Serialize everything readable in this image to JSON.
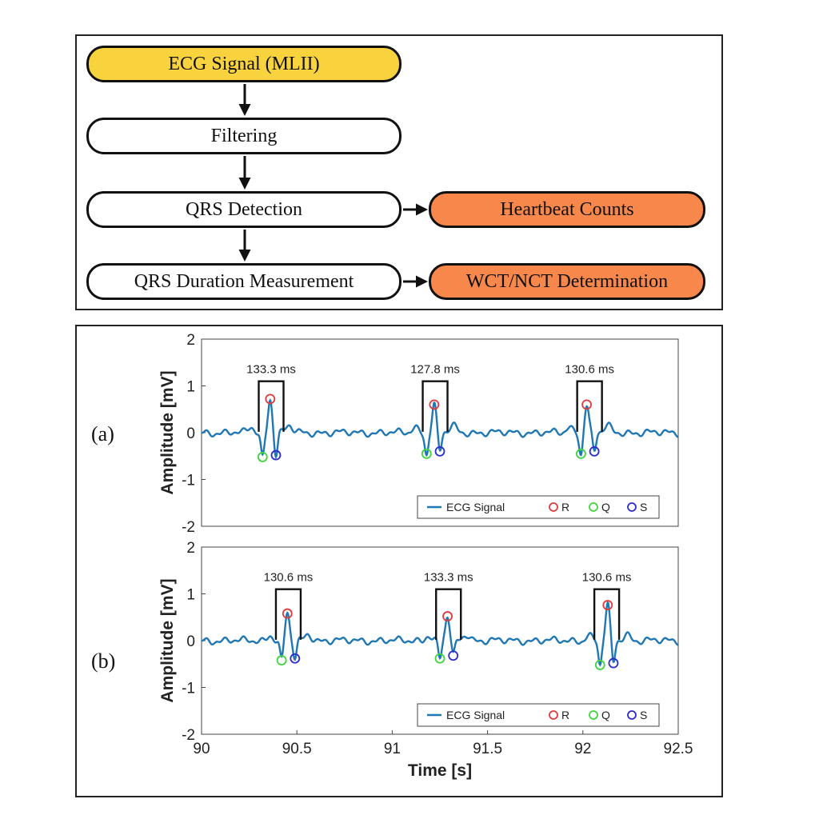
{
  "flowchart": {
    "nodes": {
      "ecg_signal": "ECG Signal (MLII)",
      "filtering": "Filtering",
      "qrs_detection": "QRS Detection",
      "heartbeat_counts": "Heartbeat Counts",
      "qrs_duration": "QRS Duration Measurement",
      "wct_nct": "WCT/NCT Determination"
    },
    "colors": {
      "input": "#f8d33e",
      "output": "#f7874b",
      "process": "#ffffff"
    }
  },
  "chart_data": [
    {
      "type": "line",
      "panel_label": "(a)",
      "ylabel": "Amplitude [mV]",
      "xlabel": "",
      "xlim": [
        90,
        92.5
      ],
      "ylim": [
        -2,
        2
      ],
      "yticks": [
        "2",
        "1",
        "0",
        "-1",
        "-2"
      ],
      "series": [
        {
          "name": "ECG Signal",
          "color": "#1f77b4",
          "beats": [
            {
              "q_time": 90.32,
              "q_val": -0.52,
              "r_time": 90.36,
              "r_val": 0.72,
              "s_time": 90.39,
              "s_val": -0.48
            },
            {
              "q_time": 91.18,
              "q_val": -0.45,
              "r_time": 91.22,
              "r_val": 0.6,
              "s_time": 91.25,
              "s_val": -0.4
            },
            {
              "q_time": 91.99,
              "q_val": -0.45,
              "r_time": 92.02,
              "r_val": 0.6,
              "s_time": 92.06,
              "s_val": -0.4
            }
          ]
        }
      ],
      "markers": {
        "R": {
          "color": "#e03a3a",
          "points": [
            [
              90.36,
              0.72
            ],
            [
              91.22,
              0.6
            ],
            [
              92.02,
              0.6
            ]
          ]
        },
        "Q": {
          "color": "#3fd43f",
          "points": [
            [
              90.32,
              -0.52
            ],
            [
              91.18,
              -0.45
            ],
            [
              91.99,
              -0.45
            ]
          ]
        },
        "S": {
          "color": "#2a2ad0",
          "points": [
            [
              90.39,
              -0.48
            ],
            [
              91.25,
              -0.4
            ],
            [
              92.06,
              -0.4
            ]
          ]
        }
      },
      "durations": [
        {
          "label": "133.3 ms",
          "start": 90.3,
          "end": 90.43
        },
        {
          "label": "127.8 ms",
          "start": 91.16,
          "end": 91.29
        },
        {
          "label": "130.6 ms",
          "start": 91.97,
          "end": 92.1
        }
      ],
      "legend": {
        "position": "bottom-right",
        "entries": [
          "ECG Signal",
          "R",
          "Q",
          "S"
        ]
      }
    },
    {
      "type": "line",
      "panel_label": "(b)",
      "ylabel": "Amplitude [mV]",
      "xlabel": "Time [s]",
      "xlim": [
        90,
        92.5
      ],
      "ylim": [
        -2,
        2
      ],
      "xticks": [
        "90",
        "90.5",
        "91",
        "91.5",
        "92",
        "92.5"
      ],
      "yticks": [
        "2",
        "1",
        "0",
        "-1",
        "-2"
      ],
      "series": [
        {
          "name": "ECG Signal",
          "color": "#1f77b4",
          "beats": [
            {
              "q_time": 90.42,
              "q_val": -0.42,
              "r_time": 90.45,
              "r_val": 0.58,
              "s_time": 90.49,
              "s_val": -0.38
            },
            {
              "q_time": 91.25,
              "q_val": -0.38,
              "r_time": 91.29,
              "r_val": 0.52,
              "s_time": 91.32,
              "s_val": -0.32
            },
            {
              "q_time": 92.09,
              "q_val": -0.52,
              "r_time": 92.13,
              "r_val": 0.76,
              "s_time": 92.16,
              "s_val": -0.48
            }
          ]
        }
      ],
      "markers": {
        "R": {
          "color": "#e03a3a",
          "points": [
            [
              90.45,
              0.58
            ],
            [
              91.29,
              0.52
            ],
            [
              92.13,
              0.76
            ]
          ]
        },
        "Q": {
          "color": "#3fd43f",
          "points": [
            [
              90.42,
              -0.42
            ],
            [
              91.25,
              -0.38
            ],
            [
              92.09,
              -0.52
            ]
          ]
        },
        "S": {
          "color": "#2a2ad0",
          "points": [
            [
              90.49,
              -0.38
            ],
            [
              91.32,
              -0.32
            ],
            [
              92.16,
              -0.48
            ]
          ]
        }
      },
      "durations": [
        {
          "label": "130.6 ms",
          "start": 90.39,
          "end": 90.52
        },
        {
          "label": "133.3 ms",
          "start": 91.23,
          "end": 91.36
        },
        {
          "label": "130.6 ms",
          "start": 92.06,
          "end": 92.19
        }
      ],
      "legend": {
        "position": "bottom-right",
        "entries": [
          "ECG Signal",
          "R",
          "Q",
          "S"
        ]
      }
    }
  ]
}
